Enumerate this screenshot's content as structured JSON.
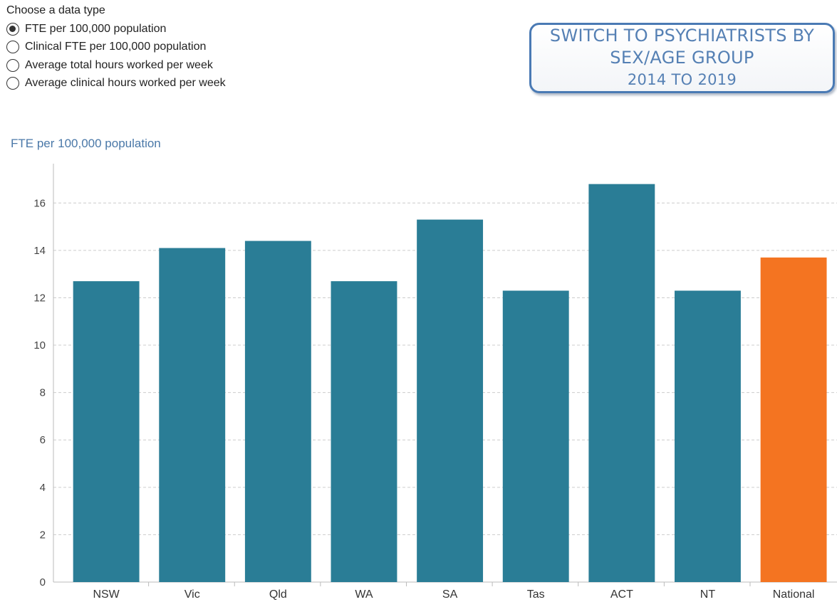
{
  "controls": {
    "title": "Choose a data type",
    "options": [
      {
        "label": "FTE per 100,000 population",
        "selected": true
      },
      {
        "label": "Clinical FTE per 100,000 population",
        "selected": false
      },
      {
        "label": "Average total hours worked per week",
        "selected": false
      },
      {
        "label": "Average clinical hours worked per week",
        "selected": false
      }
    ]
  },
  "switch_button": {
    "line1": "SWITCH TO PSYCHIATRISTS BY",
    "line2": "SEX/AGE GROUP",
    "line3": "2014 TO 2019"
  },
  "colors": {
    "bar": "#2a7d96",
    "highlight_bar": "#f47421",
    "grid": "#cccccc",
    "title": "#4a78a8"
  },
  "chart_data": {
    "type": "bar",
    "title": "FTE per 100,000 population",
    "xlabel": "",
    "ylabel": "",
    "categories": [
      "NSW",
      "Vic",
      "Qld",
      "WA",
      "SA",
      "Tas",
      "ACT",
      "NT",
      "National"
    ],
    "values": [
      12.7,
      14.1,
      14.4,
      12.7,
      15.3,
      12.3,
      16.8,
      12.3,
      13.7
    ],
    "highlight": [
      "National"
    ],
    "ylim": [
      0,
      17.5
    ],
    "yticks": [
      0,
      2,
      4,
      6,
      8,
      10,
      12,
      14,
      16
    ],
    "grid": true
  }
}
